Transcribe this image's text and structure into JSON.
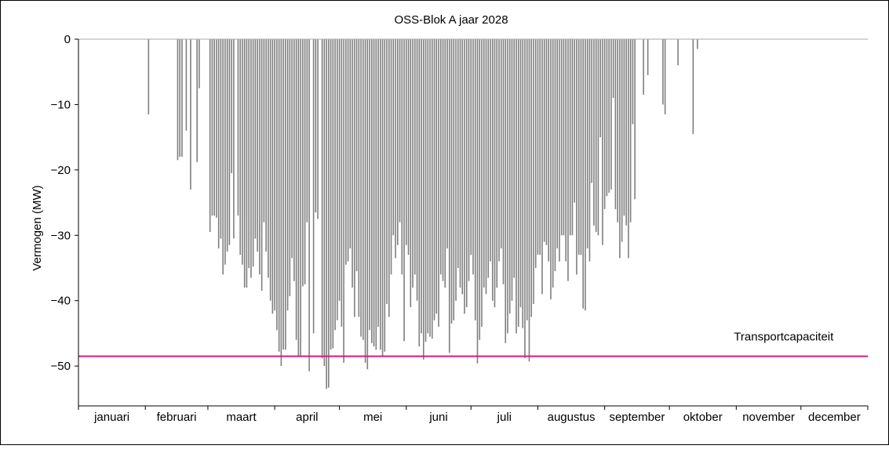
{
  "chart_data": {
    "type": "bar",
    "title": "OSS-Blok A jaar 2028",
    "xlabel": "",
    "ylabel": "Vermogen (MW)",
    "ylim": [
      -55,
      0
    ],
    "yticks": [
      0,
      -10,
      -20,
      -30,
      -40,
      -50
    ],
    "ytick_labels": [
      "0",
      "−10",
      "−20",
      "−30",
      "−40",
      "−50"
    ],
    "xlim_days": [
      0,
      366
    ],
    "months": [
      "januari",
      "februari",
      "maart",
      "april",
      "mei",
      "juni",
      "juli",
      "augustus",
      "september",
      "oktober",
      "november",
      "december"
    ],
    "capacity": {
      "label": "Transportcapaciteit",
      "value": -48.5
    },
    "series": [
      {
        "values": [
          [
            32.5,
            -11.5
          ],
          [
            46,
            -18.5
          ],
          [
            47,
            -18
          ],
          [
            48,
            -18
          ],
          [
            50,
            -14
          ],
          [
            52,
            -23
          ],
          [
            55,
            -18.8
          ],
          [
            56,
            -7.5
          ],
          [
            61,
            -29.5
          ],
          [
            62,
            -27
          ],
          [
            63,
            -27
          ],
          [
            64,
            -27.3
          ],
          [
            65,
            -32
          ],
          [
            66,
            -30.5
          ],
          [
            67,
            -36
          ],
          [
            68,
            -34.5
          ],
          [
            69,
            -32.5
          ],
          [
            70,
            -31.5
          ],
          [
            71,
            -20.5
          ],
          [
            72,
            -30.5
          ],
          [
            74,
            -27
          ],
          [
            75,
            -33
          ],
          [
            76,
            -34.5
          ],
          [
            77,
            -38
          ],
          [
            78,
            -38
          ],
          [
            79,
            -35
          ],
          [
            80,
            -36.5
          ],
          [
            81,
            -34.8
          ],
          [
            82,
            -30.5
          ],
          [
            83,
            -32.5
          ],
          [
            84,
            -36
          ],
          [
            85,
            -38.5
          ],
          [
            86,
            -28
          ],
          [
            87,
            -32.5
          ],
          [
            88,
            -36.5
          ],
          [
            89,
            -40
          ],
          [
            90,
            -42
          ],
          [
            91,
            -41.5
          ],
          [
            92,
            -44.5
          ],
          [
            93,
            -47.8
          ],
          [
            94,
            -50
          ],
          [
            95,
            -47.5
          ],
          [
            96,
            -47.5
          ],
          [
            97,
            -41.5
          ],
          [
            98,
            -39.3
          ],
          [
            99,
            -33.5
          ],
          [
            100,
            -37
          ],
          [
            101,
            -46
          ],
          [
            102,
            -48.6
          ],
          [
            103,
            -48.5
          ],
          [
            104,
            -37.8
          ],
          [
            105,
            -37.5
          ],
          [
            106,
            -28
          ],
          [
            107,
            -50.8
          ],
          [
            109,
            -45
          ],
          [
            110,
            -26.5
          ],
          [
            111,
            -27.5
          ],
          [
            113,
            -48.8
          ],
          [
            114,
            -50
          ],
          [
            115,
            -53.5
          ],
          [
            116,
            -53.3
          ],
          [
            117,
            -47.5
          ],
          [
            118,
            -47.3
          ],
          [
            119,
            -44.5
          ],
          [
            120,
            -43
          ],
          [
            121,
            -40
          ],
          [
            122,
            -44
          ],
          [
            123,
            -49.5
          ],
          [
            124,
            -34.5
          ],
          [
            125,
            -34
          ],
          [
            126,
            -32
          ],
          [
            127,
            -38
          ],
          [
            128,
            -42.5
          ],
          [
            129,
            -35.5
          ],
          [
            130,
            -42.5
          ],
          [
            131,
            -45.5
          ],
          [
            132,
            -46
          ],
          [
            133,
            -49.5
          ],
          [
            134,
            -50.5
          ],
          [
            135,
            -44.5
          ],
          [
            136,
            -46.5
          ],
          [
            137,
            -47
          ],
          [
            138,
            -47.5
          ],
          [
            139,
            -44
          ],
          [
            140,
            -47.5
          ],
          [
            141,
            -48.5
          ],
          [
            142,
            -47.8
          ],
          [
            143,
            -40.5
          ],
          [
            144,
            -42.5
          ],
          [
            145,
            -36
          ],
          [
            146,
            -30
          ],
          [
            147,
            -33.5
          ],
          [
            148,
            -31.5
          ],
          [
            149,
            -28
          ],
          [
            150,
            -36
          ],
          [
            151,
            -46.2
          ],
          [
            152,
            -31.5
          ],
          [
            153,
            -33
          ],
          [
            154,
            -41
          ],
          [
            155,
            -38
          ],
          [
            156,
            -36
          ],
          [
            157,
            -40
          ],
          [
            158,
            -47
          ],
          [
            159,
            -45
          ],
          [
            160,
            -49
          ],
          [
            161,
            -46.3
          ],
          [
            162,
            -45
          ],
          [
            163,
            -45.5
          ],
          [
            164,
            -45.8
          ],
          [
            165,
            -43
          ],
          [
            166,
            -42
          ],
          [
            167,
            -44
          ],
          [
            168,
            -36
          ],
          [
            169,
            -37
          ],
          [
            170,
            -38
          ],
          [
            171,
            -32
          ],
          [
            172,
            -48
          ],
          [
            173,
            -43.5
          ],
          [
            174,
            -43
          ],
          [
            175,
            -40
          ],
          [
            176,
            -35
          ],
          [
            177,
            -38
          ],
          [
            178,
            -39
          ],
          [
            179,
            -42
          ],
          [
            180,
            -41
          ],
          [
            181,
            -37
          ],
          [
            182,
            -33
          ],
          [
            183,
            -36
          ],
          [
            184,
            -43
          ],
          [
            185,
            -49.6
          ],
          [
            186,
            -46
          ],
          [
            187,
            -44
          ],
          [
            188,
            -38
          ],
          [
            189,
            -39
          ],
          [
            190,
            -36.5
          ],
          [
            191,
            -34
          ],
          [
            192,
            -40
          ],
          [
            193,
            -41
          ],
          [
            194,
            -38
          ],
          [
            195,
            -34
          ],
          [
            196,
            -32
          ],
          [
            197,
            -37.5
          ],
          [
            198,
            -46.5
          ],
          [
            199,
            -45
          ],
          [
            200,
            -42
          ],
          [
            201,
            -40
          ],
          [
            202,
            -36.5
          ],
          [
            203,
            -45
          ],
          [
            204,
            -44
          ],
          [
            205,
            -41
          ],
          [
            206,
            -44.2
          ],
          [
            207,
            -48.8
          ],
          [
            208,
            -43
          ],
          [
            209,
            -49.3
          ],
          [
            210,
            -42.5
          ],
          [
            211,
            -40.5
          ],
          [
            212,
            -35
          ],
          [
            213,
            -33
          ],
          [
            214,
            -33
          ],
          [
            215,
            -39
          ],
          [
            216,
            -31
          ],
          [
            217,
            -31.5
          ],
          [
            218,
            -34
          ],
          [
            219,
            -39.8
          ],
          [
            220,
            -38
          ],
          [
            221,
            -35.5
          ],
          [
            222,
            -32
          ],
          [
            223,
            -34
          ],
          [
            224,
            -30
          ],
          [
            225,
            -30
          ],
          [
            226,
            -34
          ],
          [
            227,
            -37
          ],
          [
            228,
            -30
          ],
          [
            229,
            -30
          ],
          [
            230,
            -25
          ],
          [
            231,
            -36
          ],
          [
            232,
            -33
          ],
          [
            233,
            -33
          ],
          [
            234,
            -41.2
          ],
          [
            235,
            -41.5
          ],
          [
            236,
            -32
          ],
          [
            237,
            -34
          ],
          [
            238,
            -22
          ],
          [
            239,
            -28.5
          ],
          [
            240,
            -29.5
          ],
          [
            241,
            -30
          ],
          [
            242,
            -15
          ],
          [
            243,
            -31.5
          ],
          [
            244,
            -26
          ],
          [
            245,
            -24
          ],
          [
            246,
            -23.5
          ],
          [
            247,
            -23
          ],
          [
            248,
            -9
          ],
          [
            249,
            -26
          ],
          [
            250,
            -28
          ],
          [
            251,
            -33.5
          ],
          [
            252,
            -31
          ],
          [
            253,
            -27
          ],
          [
            254,
            -28.5
          ],
          [
            255,
            -33.5
          ],
          [
            256,
            -28
          ],
          [
            257,
            -13
          ],
          [
            258,
            -24.5
          ],
          [
            262,
            -8.5
          ],
          [
            264,
            -5.5
          ],
          [
            271,
            -10
          ],
          [
            272,
            -11.5
          ],
          [
            278,
            -4
          ],
          [
            285,
            -14.5
          ],
          [
            287,
            -1.5
          ]
        ]
      }
    ]
  }
}
